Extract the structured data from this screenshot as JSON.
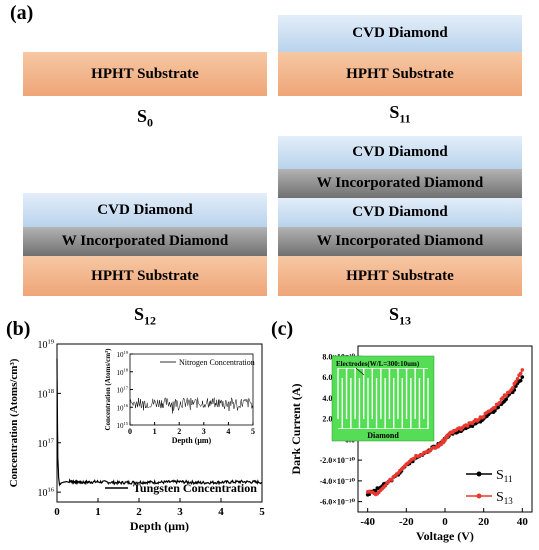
{
  "panel_a": {
    "label": "(a)",
    "s0": {
      "layers": [
        "HPHT Substrate"
      ],
      "caption_main": "S",
      "caption_sub": "0"
    },
    "s11": {
      "layers": [
        "CVD  Diamond",
        "HPHT Substrate"
      ],
      "caption_main": "S",
      "caption_sub": "11"
    },
    "s12": {
      "layers": [
        "CVD  Diamond",
        "W Incorporated Diamond",
        "HPHT Substrate"
      ],
      "caption_main": "S",
      "caption_sub": "12"
    },
    "s13": {
      "layers": [
        "CVD  Diamond",
        "W Incorporated Diamond",
        "CVD  Diamond",
        "W Incorporated Diamond",
        "HPHT Substrate"
      ],
      "caption_main": "S",
      "caption_sub": "13"
    },
    "colors": {
      "hpht": "#efa578",
      "cvd": "#c4d9ee",
      "w": "#8c8c8c"
    }
  },
  "panel_b": {
    "label": "(b)"
  },
  "panel_c": {
    "label": "(c)"
  },
  "chart_data": [
    {
      "id": "b-main",
      "type": "line",
      "xlabel": "Depth (μm)",
      "ylabel": "Concentration (Atoms/cm³)",
      "x_ticks": [
        "0",
        "1",
        "2",
        "3",
        "4",
        "5"
      ],
      "y_ticks": [
        "10^16",
        "10^17",
        "10^18",
        "10^19"
      ],
      "xlim": [
        0,
        5
      ],
      "ylim_log10": [
        15.8,
        19
      ],
      "series": [
        {
          "name": "Tungsten Concentration",
          "color": "#000000",
          "x": [
            0,
            0.01,
            0.02,
            0.04,
            0.06,
            0.1,
            0.3,
            0.6,
            1.0,
            1.5,
            2.0,
            2.5,
            3.0,
            3.5,
            4.0,
            4.5,
            5.0
          ],
          "y_log10": [
            18.7,
            17.6,
            16.7,
            16.3,
            16.15,
            16.2,
            16.22,
            16.2,
            16.21,
            16.19,
            16.2,
            16.2,
            16.21,
            16.19,
            16.2,
            16.21,
            16.2
          ]
        }
      ],
      "legend": "bottom-right"
    },
    {
      "id": "b-inset",
      "type": "line",
      "xlabel": "Depth (μm)",
      "ylabel": "Concentration (Atoms/cm³)",
      "x_ticks": [
        "0",
        "1",
        "2",
        "3",
        "4",
        "5"
      ],
      "y_ticks": [
        "10^15",
        "10^16",
        "10^17",
        "10^18",
        "10^19"
      ],
      "xlim": [
        0,
        5
      ],
      "ylim_log10": [
        15,
        19
      ],
      "series": [
        {
          "name": "Nitrogen Concentration",
          "color": "#000000",
          "mean_log10": 16.25,
          "noise_log10": 0.3
        }
      ],
      "legend": "top-right"
    },
    {
      "id": "c",
      "type": "scatter",
      "xlabel": "Voltage (V)",
      "ylabel": "Dark Current (A)",
      "x_ticks": [
        "-40",
        "-20",
        "0",
        "20",
        "40"
      ],
      "y_ticks": [
        "-6.0×10⁻¹⁰",
        "-4.0×10⁻¹⁰",
        "-2.0×10⁻¹⁰",
        "0.0",
        "2.0×10⁻¹⁰",
        "4.0×10⁻¹⁰",
        "6.0×10⁻¹⁰",
        "8.0×10⁻¹⁰"
      ],
      "xlim": [
        -45,
        45
      ],
      "ylim": [
        -7e-10,
        9e-10
      ],
      "series": [
        {
          "name_main": "S",
          "name_sub": "11",
          "color": "#000000",
          "x": [
            -40,
            -35,
            -30,
            -25,
            -20,
            -15,
            -10,
            -5,
            -2,
            0,
            2,
            5,
            10,
            15,
            20,
            25,
            30,
            35,
            40
          ],
          "y": [
            -5.3e-10,
            -4.8e-10,
            -4.2e-10,
            -3.5e-10,
            -2.5e-10,
            -1.8e-10,
            -1.2e-10,
            -7e-11,
            -3.5e-11,
            0,
            4e-11,
            7e-11,
            1e-10,
            1.4e-10,
            2e-10,
            2.7e-10,
            3.6e-10,
            4.6e-10,
            6e-10
          ]
        },
        {
          "name_main": "S",
          "name_sub": "13",
          "color": "#e8382f",
          "x": [
            -40,
            -35,
            -30,
            -25,
            -20,
            -15,
            -10,
            -5,
            -2,
            0,
            2,
            5,
            10,
            15,
            20,
            25,
            30,
            35,
            40
          ],
          "y": [
            -5e-10,
            -5.3e-10,
            -4.3e-10,
            -3.3e-10,
            -2.3e-10,
            -1.6e-10,
            -1.2e-10,
            -8e-11,
            -4e-11,
            0,
            5e-11,
            8e-11,
            1.2e-10,
            1.7e-10,
            2.3e-10,
            3e-10,
            4e-10,
            5e-10,
            6.7e-10
          ]
        }
      ],
      "legend": "bottom-right",
      "inset": {
        "label_top": "Electrodes(W/L=300:10um)",
        "label_bottom": "Diamond",
        "color": "#55dd55"
      }
    }
  ]
}
